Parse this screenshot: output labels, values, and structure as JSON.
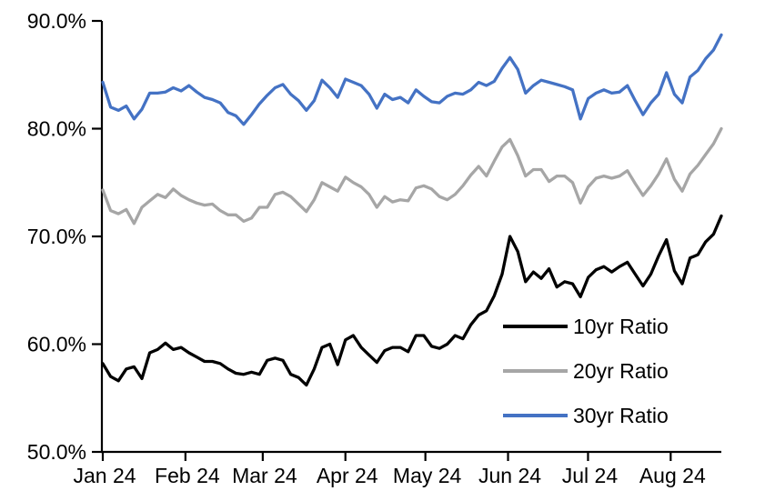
{
  "chart_data": {
    "type": "line",
    "title": "",
    "x_axis": {
      "tick_labels": [
        "Jan 24",
        "Feb 24",
        "Mar 24",
        "Apr 24",
        "May 24",
        "Jun 24",
        "Jul 24",
        "Aug 24"
      ],
      "tick_days": [
        0,
        31,
        60,
        91,
        121,
        152,
        182,
        213
      ],
      "total_days": 232,
      "range_note": "daily data from Jan 2024 through ~Aug 20 2024"
    },
    "y_axis": {
      "min": 50,
      "max": 90,
      "tick_interval": 10,
      "tick_labels": [
        "50.0%",
        "60.0%",
        "70.0%",
        "80.0%",
        "90.0%"
      ],
      "unit": "%"
    },
    "grid": false,
    "legend_position": "inside-bottom-right",
    "axis_color": "#000000",
    "background_color": "#ffffff",
    "series": [
      {
        "name": "10yr Ratio",
        "color": "#000000",
        "values": [
          58.2,
          57.0,
          56.6,
          57.7,
          57.9,
          56.8,
          59.2,
          59.5,
          60.1,
          59.5,
          59.7,
          59.2,
          58.8,
          58.4,
          58.4,
          58.2,
          57.7,
          57.3,
          57.2,
          57.4,
          57.2,
          58.5,
          58.7,
          58.5,
          57.2,
          56.9,
          56.2,
          57.7,
          59.7,
          60.0,
          58.1,
          60.4,
          60.8,
          59.7,
          59.0,
          58.3,
          59.4,
          59.7,
          59.7,
          59.3,
          60.8,
          60.8,
          59.8,
          59.6,
          60.0,
          60.8,
          60.5,
          61.8,
          62.7,
          63.1,
          64.5,
          66.5,
          70.0,
          68.6,
          65.8,
          66.7,
          66.1,
          67.0,
          65.3,
          65.8,
          65.6,
          64.4,
          66.2,
          66.9,
          67.2,
          66.7,
          67.2,
          67.6,
          66.5,
          65.4,
          66.5,
          68.2,
          69.7,
          66.8,
          65.6,
          68.0,
          68.3,
          69.5,
          70.2,
          71.9
        ]
      },
      {
        "name": "20yr Ratio",
        "color": "#A6A6A6",
        "values": [
          74.3,
          72.4,
          72.1,
          72.5,
          71.2,
          72.7,
          73.3,
          73.9,
          73.6,
          74.4,
          73.8,
          73.4,
          73.1,
          72.9,
          73.0,
          72.4,
          72.0,
          72.0,
          71.4,
          71.7,
          72.7,
          72.7,
          73.9,
          74.1,
          73.7,
          73.0,
          72.3,
          73.4,
          75.0,
          74.6,
          74.2,
          75.5,
          75.0,
          74.6,
          73.9,
          72.7,
          73.7,
          73.2,
          73.4,
          73.3,
          74.5,
          74.7,
          74.4,
          73.7,
          73.4,
          73.9,
          74.7,
          75.7,
          76.5,
          75.6,
          77.0,
          78.3,
          79.0,
          77.5,
          75.6,
          76.2,
          76.2,
          75.1,
          75.6,
          75.6,
          75.0,
          73.1,
          74.6,
          75.4,
          75.6,
          75.4,
          75.6,
          76.1,
          74.9,
          73.8,
          74.7,
          75.8,
          77.2,
          75.3,
          74.2,
          75.8,
          76.6,
          77.6,
          78.6,
          80.0
        ]
      },
      {
        "name": "30yr Ratio",
        "color": "#4472C4",
        "values": [
          84.3,
          82.0,
          81.7,
          82.1,
          80.9,
          81.8,
          83.3,
          83.3,
          83.4,
          83.8,
          83.5,
          84.0,
          83.4,
          82.9,
          82.7,
          82.4,
          81.5,
          81.2,
          80.4,
          81.3,
          82.3,
          83.1,
          83.8,
          84.1,
          83.2,
          82.6,
          81.7,
          82.6,
          84.5,
          83.8,
          82.9,
          84.6,
          84.3,
          84.0,
          83.2,
          81.9,
          83.2,
          82.7,
          82.9,
          82.4,
          83.6,
          83.0,
          82.5,
          82.4,
          83.0,
          83.3,
          83.2,
          83.6,
          84.3,
          84.0,
          84.4,
          85.6,
          86.6,
          85.5,
          83.3,
          84.0,
          84.5,
          84.3,
          84.1,
          83.9,
          83.6,
          80.9,
          82.8,
          83.3,
          83.6,
          83.3,
          83.4,
          84.0,
          82.6,
          81.3,
          82.4,
          83.2,
          85.2,
          83.2,
          82.4,
          84.8,
          85.4,
          86.5,
          87.3,
          88.7
        ]
      }
    ]
  }
}
